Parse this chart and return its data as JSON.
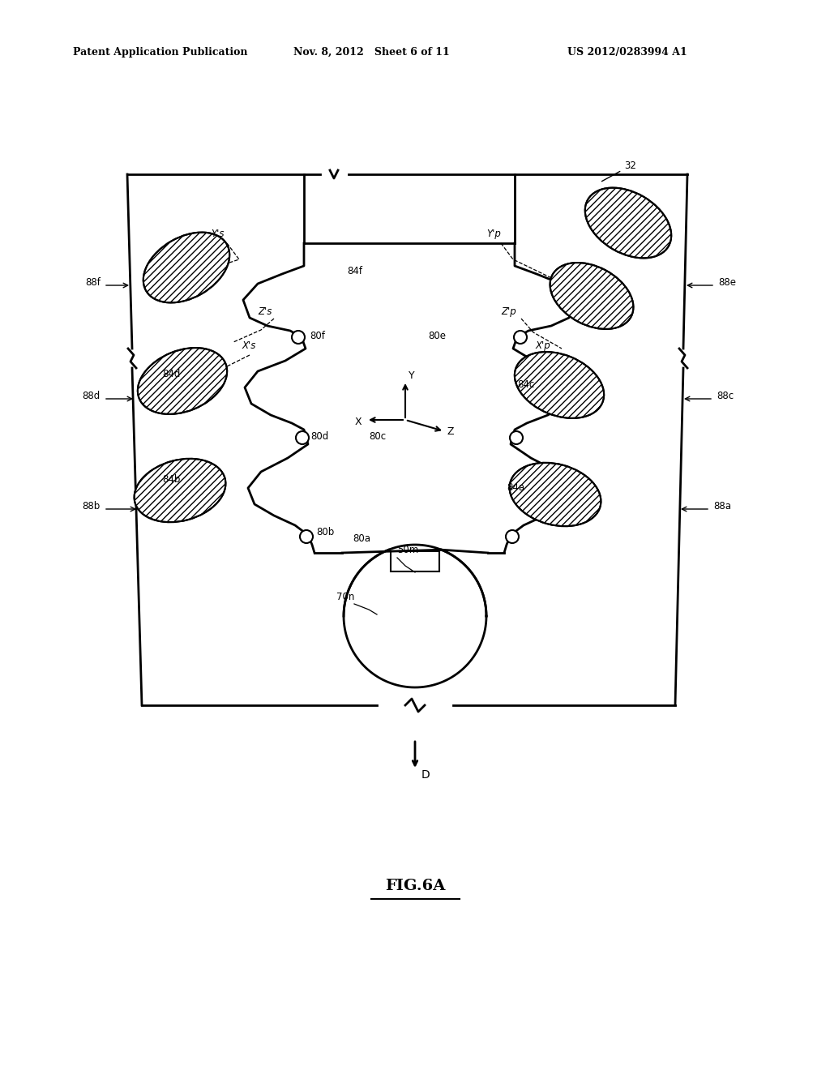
{
  "header_left": "Patent Application Publication",
  "header_mid": "Nov. 8, 2012   Sheet 6 of 11",
  "header_right": "US 2012/0283994 A1",
  "bg_color": "#ffffff",
  "line_color": "#000000",
  "fig_label": "FIG.6A"
}
